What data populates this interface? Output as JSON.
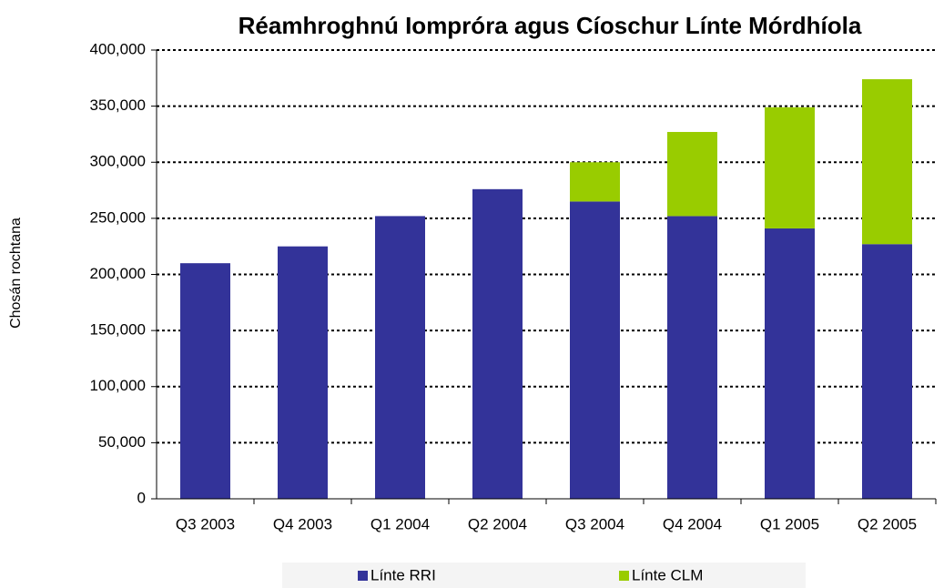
{
  "chart_data": {
    "type": "stacked_bar",
    "title": "Réamhroghnú Iompróra agus Cíoschur Línte Mórdhíola",
    "y_label": "Chosán rochtana",
    "categories": [
      "Q3 2003",
      "Q4 2003",
      "Q1 2004",
      "Q2 2004",
      "Q3 2004",
      "Q4 2004",
      "Q1 2005",
      "Q2 2005"
    ],
    "series": [
      {
        "name": "Línte RRI",
        "color": "#333399",
        "values": [
          210000,
          225000,
          252000,
          276000,
          265000,
          252000,
          241000,
          227000
        ]
      },
      {
        "name": "Línte CLM",
        "color": "#99cc00",
        "values": [
          0,
          0,
          0,
          0,
          35000,
          75000,
          108000,
          147000
        ]
      }
    ],
    "ylim": [
      0,
      400000
    ],
    "yticks": [
      {
        "value": 0,
        "label": "0"
      },
      {
        "value": 50000,
        "label": "50,000"
      },
      {
        "value": 100000,
        "label": "100,000"
      },
      {
        "value": 150000,
        "label": "150,000"
      },
      {
        "value": 200000,
        "label": "200,000"
      },
      {
        "value": 250000,
        "label": "250,000"
      },
      {
        "value": 300000,
        "label": "300,000"
      },
      {
        "value": 350000,
        "label": "350,000"
      },
      {
        "value": 400000,
        "label": "400,000"
      }
    ],
    "grid": true,
    "legend": "bottom"
  }
}
